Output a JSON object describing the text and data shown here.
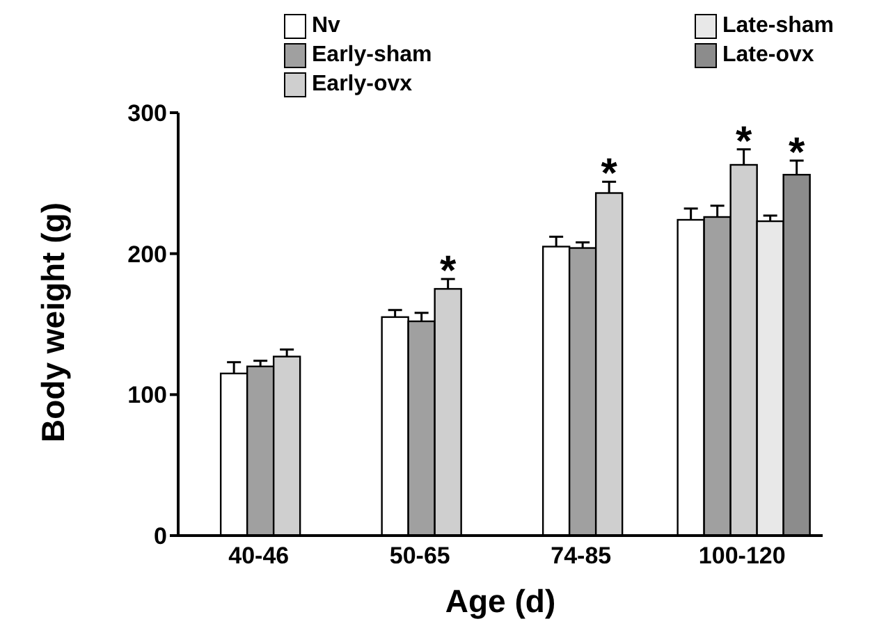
{
  "chart_data": {
    "type": "bar",
    "xlabel": "Age  (d)",
    "ylabel": "Body weight (g)",
    "categories": [
      "40-46",
      "50-65",
      "74-85",
      "100-120"
    ],
    "series": [
      {
        "name": "Nv",
        "color": "#ffffff",
        "values": [
          115,
          155,
          205,
          224
        ],
        "errors": [
          8,
          5,
          7,
          8
        ]
      },
      {
        "name": "Early-sham",
        "color": "#a0a0a0",
        "values": [
          120,
          152,
          204,
          226
        ],
        "errors": [
          4,
          6,
          4,
          8
        ]
      },
      {
        "name": "Early-ovx",
        "color": "#cfcfcf",
        "values": [
          127,
          175,
          243,
          263
        ],
        "errors": [
          5,
          7,
          8,
          11
        ]
      },
      {
        "name": "Late-sham",
        "color": "#e8e8e8",
        "values": [
          null,
          null,
          null,
          223
        ],
        "errors": [
          null,
          null,
          null,
          4
        ]
      },
      {
        "name": "Late-ovx",
        "color": "#8c8c8c",
        "values": [
          null,
          null,
          null,
          256
        ],
        "errors": [
          null,
          null,
          null,
          10
        ]
      }
    ],
    "ylim": [
      0,
      300
    ],
    "yticks": [
      0,
      100,
      200,
      300
    ],
    "grid": false,
    "legend": "top",
    "annotations": [
      "*",
      "*",
      "*",
      "*"
    ]
  }
}
